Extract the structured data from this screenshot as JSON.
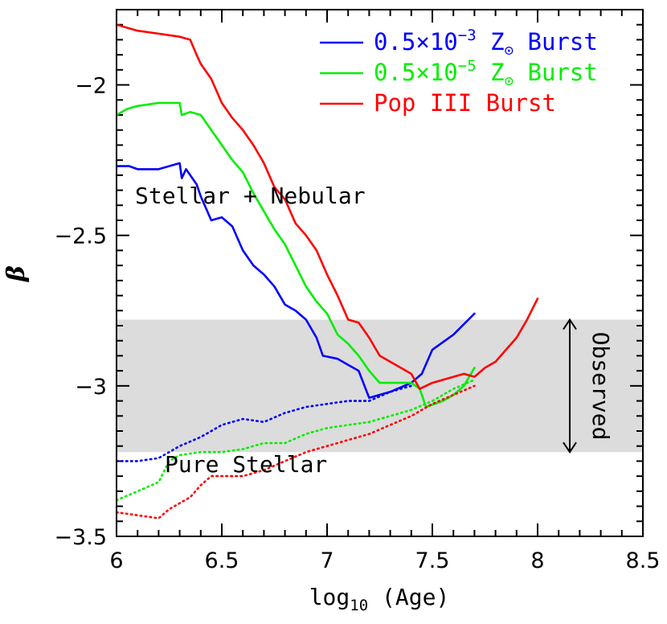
{
  "chart_data": {
    "type": "line",
    "title": "",
    "xlabel": "log₁₀ (Age)",
    "xlabel_parts": {
      "pre": "log",
      "sub": "10",
      "post": " (Age)"
    },
    "ylabel": "β",
    "xlim": [
      6,
      8.5
    ],
    "ylim": [
      -3.5,
      -1.75
    ],
    "x_ticks": [
      "6",
      "6.5",
      "7",
      "7.5",
      "8",
      "8.5"
    ],
    "y_ticks": [
      "-2",
      "-2.5",
      "-3",
      "-3.5"
    ],
    "y_tick_labels": [
      "−2",
      "−2.5",
      "−3",
      "−3.5"
    ],
    "legend_position": "top-right",
    "observed_band": {
      "ymin": -3.22,
      "ymax": -2.78,
      "label": "Observed",
      "color": "#dcdcdc"
    },
    "annotations": {
      "stellar_nebular": "Stellar + Nebular",
      "pure_stellar": "Pure Stellar"
    },
    "series": [
      {
        "name": "0.5×10⁻³ Z⊙ Burst",
        "legend": {
          "main": "0.5×10",
          "sup": "−3",
          "mid": " Z",
          "sub": "⊙",
          "post": " Burst"
        },
        "color": "#0000ff",
        "style": "solid",
        "points": [
          [
            6.0,
            -2.27
          ],
          [
            6.06,
            -2.27
          ],
          [
            6.1,
            -2.28
          ],
          [
            6.2,
            -2.28
          ],
          [
            6.3,
            -2.26
          ],
          [
            6.31,
            -2.31
          ],
          [
            6.33,
            -2.28
          ],
          [
            6.38,
            -2.33
          ],
          [
            6.4,
            -2.37
          ],
          [
            6.45,
            -2.45
          ],
          [
            6.5,
            -2.44
          ],
          [
            6.55,
            -2.47
          ],
          [
            6.6,
            -2.55
          ],
          [
            6.65,
            -2.6
          ],
          [
            6.7,
            -2.63
          ],
          [
            6.75,
            -2.67
          ],
          [
            6.8,
            -2.73
          ],
          [
            6.85,
            -2.75
          ],
          [
            6.9,
            -2.78
          ],
          [
            6.95,
            -2.84
          ],
          [
            6.98,
            -2.9
          ],
          [
            7.05,
            -2.91
          ],
          [
            7.1,
            -2.93
          ],
          [
            7.15,
            -2.95
          ],
          [
            7.2,
            -3.04
          ],
          [
            7.3,
            -3.02
          ],
          [
            7.4,
            -2.99
          ],
          [
            7.45,
            -2.96
          ],
          [
            7.5,
            -2.88
          ],
          [
            7.6,
            -2.83
          ],
          [
            7.7,
            -2.76
          ]
        ]
      },
      {
        "name": "0.5×10⁻³ Z⊙ Burst (pure stellar)",
        "color": "#0000ff",
        "style": "dotted",
        "points": [
          [
            6.0,
            -3.25
          ],
          [
            6.1,
            -3.25
          ],
          [
            6.2,
            -3.24
          ],
          [
            6.3,
            -3.2
          ],
          [
            6.4,
            -3.17
          ],
          [
            6.5,
            -3.13
          ],
          [
            6.6,
            -3.11
          ],
          [
            6.7,
            -3.12
          ],
          [
            6.8,
            -3.09
          ],
          [
            6.9,
            -3.07
          ],
          [
            7.0,
            -3.06
          ],
          [
            7.1,
            -3.05
          ],
          [
            7.2,
            -3.05
          ],
          [
            7.3,
            -3.02
          ],
          [
            7.4,
            -3.0
          ]
        ]
      },
      {
        "name": "0.5×10⁻⁵ Z⊙ Burst",
        "legend": {
          "main": "0.5×10",
          "sup": "−5",
          "mid": " Z",
          "sub": "⊙",
          "post": " Burst"
        },
        "color": "#00ee00",
        "style": "solid",
        "points": [
          [
            6.0,
            -2.1
          ],
          [
            6.05,
            -2.08
          ],
          [
            6.1,
            -2.07
          ],
          [
            6.2,
            -2.06
          ],
          [
            6.3,
            -2.06
          ],
          [
            6.31,
            -2.1
          ],
          [
            6.35,
            -2.09
          ],
          [
            6.4,
            -2.1
          ],
          [
            6.45,
            -2.15
          ],
          [
            6.5,
            -2.2
          ],
          [
            6.55,
            -2.25
          ],
          [
            6.6,
            -2.29
          ],
          [
            6.65,
            -2.36
          ],
          [
            6.7,
            -2.42
          ],
          [
            6.75,
            -2.48
          ],
          [
            6.8,
            -2.53
          ],
          [
            6.85,
            -2.6
          ],
          [
            6.9,
            -2.67
          ],
          [
            6.95,
            -2.72
          ],
          [
            7.0,
            -2.76
          ],
          [
            7.05,
            -2.83
          ],
          [
            7.1,
            -2.86
          ],
          [
            7.15,
            -2.9
          ],
          [
            7.2,
            -2.95
          ],
          [
            7.25,
            -2.99
          ],
          [
            7.35,
            -2.99
          ],
          [
            7.4,
            -2.99
          ],
          [
            7.44,
            -3.01
          ],
          [
            7.47,
            -3.07
          ],
          [
            7.55,
            -3.05
          ],
          [
            7.6,
            -3.03
          ],
          [
            7.65,
            -3.0
          ],
          [
            7.7,
            -2.94
          ]
        ]
      },
      {
        "name": "0.5×10⁻⁵ Z⊙ Burst (pure stellar)",
        "color": "#00ee00",
        "style": "dotted",
        "points": [
          [
            6.0,
            -3.38
          ],
          [
            6.1,
            -3.35
          ],
          [
            6.2,
            -3.32
          ],
          [
            6.25,
            -3.25
          ],
          [
            6.3,
            -3.23
          ],
          [
            6.4,
            -3.22
          ],
          [
            6.5,
            -3.22
          ],
          [
            6.6,
            -3.21
          ],
          [
            6.7,
            -3.19
          ],
          [
            6.8,
            -3.19
          ],
          [
            6.9,
            -3.16
          ],
          [
            7.0,
            -3.14
          ],
          [
            7.1,
            -3.13
          ],
          [
            7.2,
            -3.12
          ],
          [
            7.3,
            -3.1
          ],
          [
            7.4,
            -3.08
          ],
          [
            7.5,
            -3.05
          ],
          [
            7.6,
            -3.01
          ],
          [
            7.7,
            -2.98
          ]
        ]
      },
      {
        "name": "Pop III Burst",
        "legend": {
          "main": "Pop III Burst",
          "sup": "",
          "mid": "",
          "sub": "",
          "post": ""
        },
        "color": "#ff0000",
        "style": "solid",
        "points": [
          [
            6.0,
            -1.8
          ],
          [
            6.1,
            -1.82
          ],
          [
            6.2,
            -1.83
          ],
          [
            6.3,
            -1.84
          ],
          [
            6.35,
            -1.85
          ],
          [
            6.38,
            -1.9
          ],
          [
            6.4,
            -1.93
          ],
          [
            6.45,
            -1.98
          ],
          [
            6.5,
            -2.06
          ],
          [
            6.55,
            -2.11
          ],
          [
            6.6,
            -2.15
          ],
          [
            6.65,
            -2.2
          ],
          [
            6.7,
            -2.26
          ],
          [
            6.75,
            -2.34
          ],
          [
            6.8,
            -2.38
          ],
          [
            6.85,
            -2.46
          ],
          [
            6.9,
            -2.5
          ],
          [
            6.95,
            -2.55
          ],
          [
            7.0,
            -2.63
          ],
          [
            7.05,
            -2.7
          ],
          [
            7.1,
            -2.78
          ],
          [
            7.15,
            -2.79
          ],
          [
            7.2,
            -2.84
          ],
          [
            7.25,
            -2.9
          ],
          [
            7.3,
            -2.92
          ],
          [
            7.4,
            -2.96
          ],
          [
            7.44,
            -3.01
          ],
          [
            7.5,
            -2.99
          ],
          [
            7.6,
            -2.97
          ],
          [
            7.65,
            -2.96
          ],
          [
            7.7,
            -2.97
          ],
          [
            7.75,
            -2.94
          ],
          [
            7.8,
            -2.92
          ],
          [
            7.85,
            -2.88
          ],
          [
            7.9,
            -2.84
          ],
          [
            7.95,
            -2.78
          ],
          [
            8.0,
            -2.71
          ]
        ]
      },
      {
        "name": "Pop III Burst (pure stellar)",
        "color": "#ff0000",
        "style": "dotted",
        "points": [
          [
            6.0,
            -3.42
          ],
          [
            6.1,
            -3.43
          ],
          [
            6.2,
            -3.44
          ],
          [
            6.25,
            -3.41
          ],
          [
            6.35,
            -3.37
          ],
          [
            6.4,
            -3.33
          ],
          [
            6.45,
            -3.3
          ],
          [
            6.5,
            -3.3
          ],
          [
            6.6,
            -3.3
          ],
          [
            6.7,
            -3.28
          ],
          [
            6.8,
            -3.25
          ],
          [
            6.9,
            -3.22
          ],
          [
            7.0,
            -3.2
          ],
          [
            7.1,
            -3.18
          ],
          [
            7.2,
            -3.16
          ],
          [
            7.3,
            -3.13
          ],
          [
            7.4,
            -3.1
          ],
          [
            7.5,
            -3.06
          ],
          [
            7.6,
            -3.03
          ],
          [
            7.7,
            -3.0
          ]
        ]
      }
    ]
  }
}
